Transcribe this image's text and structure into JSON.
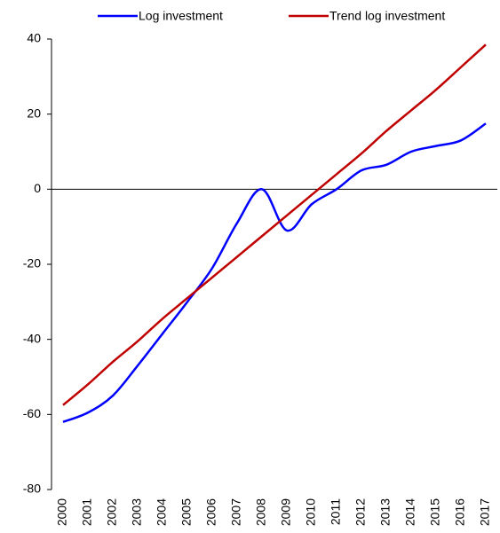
{
  "chart_data": {
    "type": "line",
    "categories": [
      "2000",
      "2001",
      "2002",
      "2003",
      "2004",
      "2005",
      "2006",
      "2007",
      "2008",
      "2009",
      "2010",
      "2011",
      "2012",
      "2013",
      "2014",
      "2015",
      "2016",
      "2017"
    ],
    "series": [
      {
        "name": "Log investment",
        "color": "#0000ff",
        "values": [
          -62,
          -59.5,
          -55,
          -47,
          -38.5,
          -30,
          -21,
          -9,
          0,
          -11,
          -4,
          0,
          5,
          6.5,
          10,
          11.5,
          13,
          17.5
        ]
      },
      {
        "name": "Trend log investment",
        "color": "#c00000",
        "values": [
          -57.5,
          -52,
          -46,
          -40.5,
          -34.5,
          -29,
          -23.5,
          -18,
          -12.5,
          -7,
          -1.5,
          4,
          9.5,
          15.5,
          21,
          26.5,
          32.5,
          38.5
        ]
      }
    ],
    "ylim": [
      -80,
      40
    ],
    "yticks": [
      -80,
      -60,
      -40,
      -20,
      0,
      20,
      40
    ],
    "zero_line": true,
    "legend": "top",
    "smooth": true
  }
}
